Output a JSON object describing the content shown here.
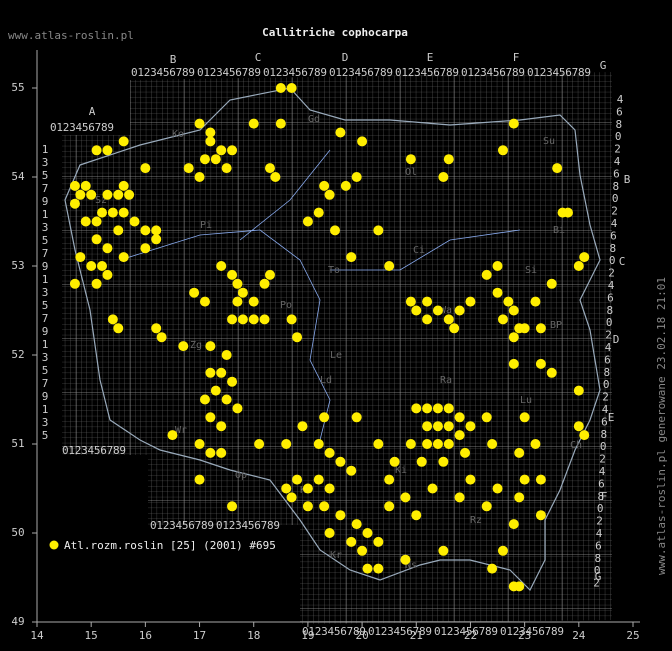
{
  "chart_data": {
    "type": "scatter",
    "title": "Callitriche cophocarpa",
    "site": "www.atlas-roslin.pl",
    "side_note": "www.atlas-roslin.pl generowane 23.02.18 21:01",
    "legend": "Atl.rozm.roslin [25] (2001) #695",
    "color": "#ffee00",
    "xlim": [
      14,
      25
    ],
    "ylim": [
      49,
      55
    ],
    "xticks": [
      14,
      15,
      16,
      17,
      18,
      19,
      20,
      21,
      22,
      23,
      24,
      25
    ],
    "yticks": [
      49,
      50,
      51,
      52,
      53,
      54,
      55
    ],
    "grid_letters_top": [
      "A",
      "B",
      "C",
      "D",
      "E",
      "F",
      "G"
    ],
    "grid_letters_right": [
      "B",
      "C",
      "D",
      "E",
      "F",
      "G"
    ],
    "digit_strip": "0123456789",
    "odd_digits": [
      "1",
      "3",
      "5",
      "7",
      "9"
    ],
    "even_digits": [
      "4",
      "6",
      "8",
      "0",
      "2"
    ],
    "regions": [
      "Ko",
      "Gd",
      "Ol",
      "Su",
      "Sz",
      "Bi",
      "Pi",
      "Ci",
      "To",
      "Po",
      "Wa",
      "Si",
      "Zg",
      "Le",
      "BP",
      "Wr",
      "Ld",
      "Ra",
      "Lu",
      "Op",
      "Ka",
      "Ki",
      "Kr",
      "Rz",
      "Ch",
      "Ns"
    ],
    "points": [
      [
        14.7,
        53.9
      ],
      [
        14.8,
        53.8
      ],
      [
        14.9,
        53.9
      ],
      [
        14.7,
        53.7
      ],
      [
        15.0,
        53.8
      ],
      [
        15.3,
        53.8
      ],
      [
        15.5,
        53.8
      ],
      [
        15.7,
        53.8
      ],
      [
        15.6,
        53.9
      ],
      [
        15.2,
        53.6
      ],
      [
        15.4,
        53.6
      ],
      [
        15.6,
        53.6
      ],
      [
        14.9,
        53.5
      ],
      [
        15.1,
        53.5
      ],
      [
        15.5,
        53.4
      ],
      [
        15.8,
        53.5
      ],
      [
        16.0,
        53.4
      ],
      [
        16.2,
        53.4
      ],
      [
        16.2,
        53.3
      ],
      [
        15.1,
        53.3
      ],
      [
        15.3,
        53.2
      ],
      [
        14.8,
        53.1
      ],
      [
        15.0,
        53.0
      ],
      [
        15.2,
        53.0
      ],
      [
        14.7,
        52.8
      ],
      [
        15.1,
        52.8
      ],
      [
        15.3,
        52.9
      ],
      [
        15.6,
        53.1
      ],
      [
        16.0,
        53.2
      ],
      [
        15.4,
        52.4
      ],
      [
        15.5,
        52.3
      ],
      [
        16.2,
        52.3
      ],
      [
        16.3,
        52.2
      ],
      [
        15.3,
        54.3
      ],
      [
        15.1,
        54.3
      ],
      [
        15.6,
        54.4
      ],
      [
        16.0,
        54.1
      ],
      [
        17.0,
        54.6
      ],
      [
        17.2,
        54.5
      ],
      [
        17.2,
        54.4
      ],
      [
        17.4,
        54.3
      ],
      [
        17.1,
        54.2
      ],
      [
        17.3,
        54.2
      ],
      [
        16.8,
        54.1
      ],
      [
        17.0,
        54.0
      ],
      [
        17.5,
        54.1
      ],
      [
        17.6,
        54.3
      ],
      [
        18.4,
        54.0
      ],
      [
        18.3,
        54.1
      ],
      [
        18.5,
        55.0
      ],
      [
        18.7,
        55.0
      ],
      [
        18.5,
        54.6
      ],
      [
        18.0,
        54.6
      ],
      [
        19.3,
        53.9
      ],
      [
        19.4,
        53.8
      ],
      [
        19.2,
        53.6
      ],
      [
        19.0,
        53.5
      ],
      [
        19.5,
        53.4
      ],
      [
        19.8,
        53.1
      ],
      [
        20.3,
        53.4
      ],
      [
        20.5,
        53.0
      ],
      [
        19.7,
        53.9
      ],
      [
        19.9,
        54.0
      ],
      [
        20.0,
        54.4
      ],
      [
        19.6,
        54.5
      ],
      [
        20.9,
        54.2
      ],
      [
        21.5,
        54.0
      ],
      [
        21.6,
        54.2
      ],
      [
        22.8,
        54.6
      ],
      [
        22.6,
        54.3
      ],
      [
        23.6,
        54.1
      ],
      [
        23.7,
        53.6
      ],
      [
        23.8,
        53.6
      ],
      [
        17.4,
        53.0
      ],
      [
        17.6,
        52.9
      ],
      [
        17.7,
        52.8
      ],
      [
        17.8,
        52.7
      ],
      [
        17.7,
        52.6
      ],
      [
        17.6,
        52.4
      ],
      [
        17.8,
        52.4
      ],
      [
        18.0,
        52.4
      ],
      [
        18.2,
        52.4
      ],
      [
        18.0,
        52.6
      ],
      [
        18.2,
        52.8
      ],
      [
        18.3,
        52.9
      ],
      [
        16.9,
        52.7
      ],
      [
        17.1,
        52.6
      ],
      [
        16.7,
        52.1
      ],
      [
        17.2,
        52.1
      ],
      [
        17.5,
        52.0
      ],
      [
        18.8,
        52.2
      ],
      [
        18.7,
        52.4
      ],
      [
        17.2,
        51.8
      ],
      [
        17.4,
        51.8
      ],
      [
        17.6,
        51.7
      ],
      [
        17.3,
        51.6
      ],
      [
        17.1,
        51.5
      ],
      [
        17.5,
        51.5
      ],
      [
        17.7,
        51.4
      ],
      [
        17.2,
        51.3
      ],
      [
        17.4,
        51.2
      ],
      [
        17.0,
        51.0
      ],
      [
        17.2,
        50.9
      ],
      [
        17.4,
        50.9
      ],
      [
        16.5,
        51.1
      ],
      [
        17.0,
        50.6
      ],
      [
        18.1,
        51.0
      ],
      [
        17.6,
        50.3
      ],
      [
        20.9,
        52.6
      ],
      [
        21.0,
        52.5
      ],
      [
        21.2,
        52.6
      ],
      [
        21.2,
        52.4
      ],
      [
        21.4,
        52.5
      ],
      [
        21.6,
        52.4
      ],
      [
        21.8,
        52.5
      ],
      [
        21.7,
        52.3
      ],
      [
        22.0,
        52.6
      ],
      [
        22.5,
        52.7
      ],
      [
        22.7,
        52.6
      ],
      [
        22.8,
        52.5
      ],
      [
        22.6,
        52.4
      ],
      [
        22.9,
        52.3
      ],
      [
        23.0,
        52.3
      ],
      [
        22.8,
        52.2
      ],
      [
        23.2,
        52.6
      ],
      [
        23.3,
        52.3
      ],
      [
        22.5,
        53.0
      ],
      [
        22.3,
        52.9
      ],
      [
        23.5,
        52.8
      ],
      [
        24.0,
        53.0
      ],
      [
        24.1,
        53.1
      ],
      [
        22.8,
        51.9
      ],
      [
        23.3,
        51.9
      ],
      [
        23.5,
        51.8
      ],
      [
        24.1,
        51.1
      ],
      [
        24.0,
        51.2
      ],
      [
        18.6,
        50.5
      ],
      [
        18.8,
        50.6
      ],
      [
        19.0,
        50.5
      ],
      [
        19.2,
        50.6
      ],
      [
        19.4,
        50.5
      ],
      [
        18.7,
        50.4
      ],
      [
        19.0,
        50.3
      ],
      [
        19.3,
        50.3
      ],
      [
        19.6,
        50.2
      ],
      [
        19.9,
        50.1
      ],
      [
        20.1,
        50.0
      ],
      [
        20.3,
        49.9
      ],
      [
        19.8,
        49.9
      ],
      [
        19.4,
        50.0
      ],
      [
        20.0,
        49.8
      ],
      [
        20.3,
        49.6
      ],
      [
        20.1,
        49.6
      ],
      [
        19.6,
        50.8
      ],
      [
        19.8,
        50.7
      ],
      [
        19.4,
        50.9
      ],
      [
        19.2,
        51.0
      ],
      [
        18.6,
        51.0
      ],
      [
        18.9,
        51.2
      ],
      [
        19.3,
        51.3
      ],
      [
        19.9,
        51.3
      ],
      [
        20.3,
        51.0
      ],
      [
        20.6,
        50.8
      ],
      [
        20.5,
        50.6
      ],
      [
        20.8,
        50.4
      ],
      [
        21.0,
        50.2
      ],
      [
        20.9,
        51.0
      ],
      [
        21.0,
        51.4
      ],
      [
        21.2,
        51.4
      ],
      [
        21.4,
        51.4
      ],
      [
        21.6,
        51.4
      ],
      [
        21.8,
        51.3
      ],
      [
        21.2,
        51.2
      ],
      [
        21.4,
        51.2
      ],
      [
        21.6,
        51.2
      ],
      [
        21.8,
        51.1
      ],
      [
        21.2,
        51.0
      ],
      [
        21.4,
        51.0
      ],
      [
        21.6,
        51.0
      ],
      [
        21.9,
        50.9
      ],
      [
        21.5,
        50.8
      ],
      [
        21.1,
        50.8
      ],
      [
        22.0,
        51.2
      ],
      [
        22.3,
        51.3
      ],
      [
        22.4,
        51.0
      ],
      [
        22.0,
        50.6
      ],
      [
        21.8,
        50.4
      ],
      [
        22.5,
        50.5
      ],
      [
        22.9,
        50.4
      ],
      [
        23.0,
        50.6
      ],
      [
        23.3,
        50.6
      ],
      [
        23.3,
        50.2
      ],
      [
        22.8,
        50.1
      ],
      [
        22.3,
        50.3
      ],
      [
        22.4,
        49.6
      ],
      [
        22.8,
        49.4
      ],
      [
        22.9,
        49.4
      ],
      [
        22.6,
        49.8
      ],
      [
        21.5,
        49.8
      ],
      [
        20.8,
        49.7
      ],
      [
        20.5,
        50.3
      ],
      [
        21.3,
        50.5
      ],
      [
        23.0,
        51.3
      ],
      [
        23.2,
        51.0
      ],
      [
        22.9,
        50.9
      ],
      [
        24.0,
        51.6
      ]
    ]
  }
}
